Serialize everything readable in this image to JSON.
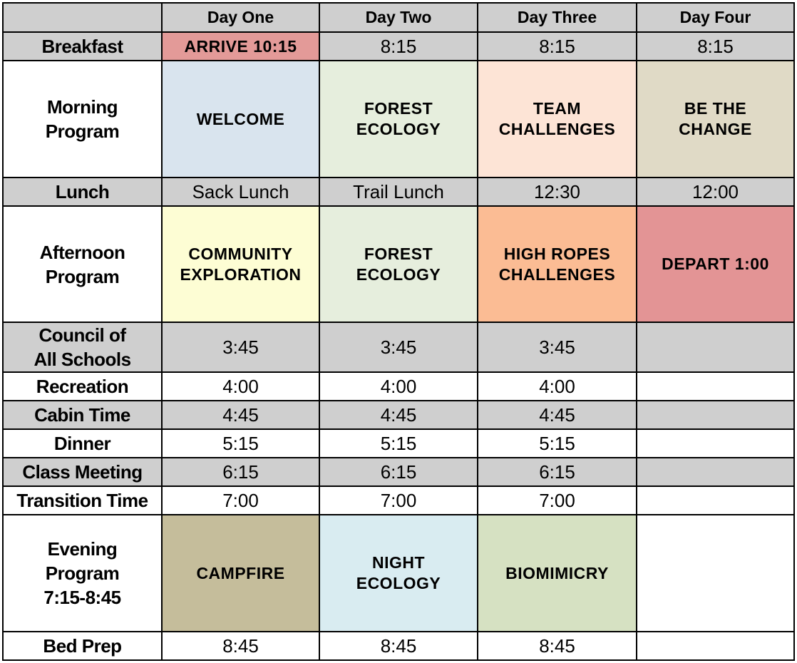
{
  "table": {
    "header": [
      "Day One",
      "Day Two",
      "Day Three",
      "Day Four"
    ],
    "rows": [
      [
        "Breakfast",
        "ARRIVE 10:15",
        "8:15",
        "8:15",
        "8:15"
      ],
      [
        "Morning Program",
        "WELCOME",
        "FOREST ECOLOGY",
        "TEAM CHALLENGES",
        "BE THE CHANGE"
      ],
      [
        "Lunch",
        "Sack Lunch",
        "Trail Lunch",
        "12:30",
        "12:00"
      ],
      [
        "Afternoon Program",
        "COMMUNITY EXPLORATION",
        "FOREST ECOLOGY",
        "HIGH ROPES CHALLENGES",
        "DEPART 1:00"
      ],
      [
        "Council of All Schools",
        "3:45",
        "3:45",
        "3:45",
        null
      ],
      [
        "Recreation",
        "4:00",
        "4:00",
        "4:00",
        null
      ],
      [
        "Cabin Time",
        "4:45",
        "4:45",
        "4:45",
        null
      ],
      [
        "Dinner",
        "5:15",
        "5:15",
        "5:15",
        null
      ],
      [
        "Class Meeting",
        "6:15",
        "6:15",
        "6:15",
        null
      ],
      [
        "Transition Time",
        "7:00",
        "7:00",
        "7:00",
        null
      ],
      [
        "Evening Program 7:15-8:45",
        "CAMPFIRE",
        "NIGHT ECOLOGY",
        "BIOMIMICRY",
        null
      ],
      [
        "Bed Prep",
        "8:45",
        "8:45",
        "8:45",
        null
      ]
    ]
  }
}
